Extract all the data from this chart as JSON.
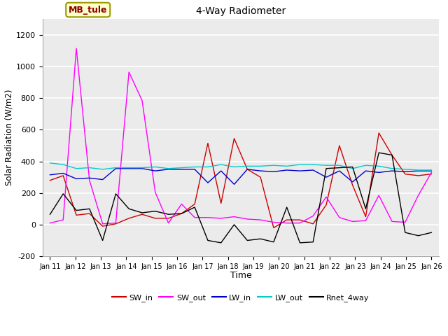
{
  "title": "4-Way Radiometer",
  "xlabel": "Time",
  "ylabel": "Solar Radiation (W/m2)",
  "ylim": [
    -200,
    1300
  ],
  "yticks": [
    -200,
    0,
    200,
    400,
    600,
    800,
    1000,
    1200
  ],
  "annotation_label": "MB_tule",
  "annotation_color": "#8B0000",
  "annotation_bg": "#FFFFCC",
  "annotation_edge": "#999900",
  "x_labels": [
    "Jan 11",
    "Jan 12",
    "Jan 13",
    "Jan 14",
    "Jan 15",
    "Jan 16",
    "Jan 17",
    "Jan 18",
    "Jan 19",
    "Jan 20",
    "Jan 21",
    "Jan 22",
    "Jan 23",
    "Jan 24",
    "Jan 25",
    "Jan 26"
  ],
  "colors": {
    "SW_in": "#CC0000",
    "SW_out": "#FF00FF",
    "LW_in": "#0000CC",
    "LW_out": "#00CCCC",
    "Rnet_4way": "#000000"
  },
  "plot_bg": "#EBEBEB",
  "grid_color": "#FFFFFF",
  "series": {
    "SW_in": [
      280,
      310,
      60,
      70,
      -10,
      5,
      40,
      65,
      40,
      40,
      70,
      130,
      515,
      135,
      545,
      350,
      300,
      -20,
      30,
      30,
      5,
      125,
      500,
      250,
      50,
      580,
      440,
      320,
      310,
      320
    ],
    "SW_out": [
      10,
      30,
      1115,
      280,
      5,
      10,
      965,
      785,
      205,
      10,
      130,
      45,
      45,
      40,
      50,
      35,
      30,
      15,
      10,
      10,
      55,
      175,
      45,
      20,
      25,
      185,
      20,
      15,
      185,
      330
    ],
    "LW_in": [
      315,
      325,
      290,
      295,
      285,
      355,
      355,
      355,
      340,
      350,
      350,
      350,
      265,
      340,
      255,
      350,
      340,
      335,
      345,
      340,
      345,
      300,
      340,
      270,
      340,
      330,
      340,
      335,
      340,
      340
    ],
    "LW_out": [
      390,
      380,
      355,
      360,
      350,
      360,
      360,
      360,
      365,
      355,
      360,
      365,
      365,
      380,
      365,
      370,
      370,
      375,
      370,
      380,
      380,
      375,
      375,
      355,
      375,
      370,
      355,
      350,
      345,
      345
    ],
    "Rnet_4way": [
      65,
      195,
      90,
      100,
      -100,
      195,
      100,
      75,
      85,
      65,
      70,
      110,
      -100,
      -115,
      0,
      -100,
      -90,
      -110,
      110,
      -115,
      -110,
      355,
      360,
      365,
      100,
      455,
      440,
      -50,
      -70,
      -50
    ]
  }
}
